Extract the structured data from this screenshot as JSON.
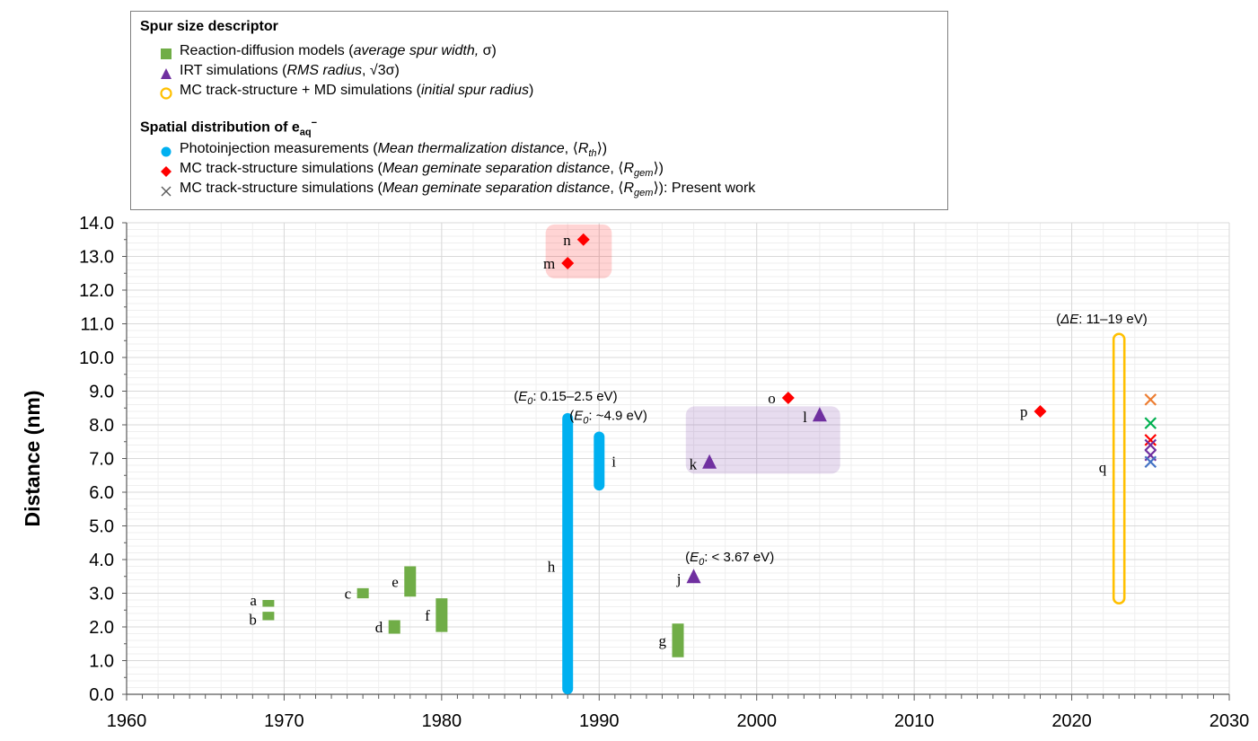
{
  "legend": {
    "group1_title": "Spur size descriptor",
    "group1": [
      {
        "marker": "square",
        "color": "#70ad47",
        "plain": "Reaction-diffusion models (",
        "italic": "average spur width,",
        "tail": " σ)"
      },
      {
        "marker": "triangle",
        "color": "#7030a0",
        "plain": "IRT simulations (",
        "italic": "RMS radius",
        "tail": ", √3σ)"
      },
      {
        "marker": "circle-open",
        "color": "#ffc000",
        "plain": "MC track-structure + MD simulations (",
        "italic": "initial spur radius",
        "tail": ")"
      }
    ],
    "group2_title": "Spatial distribution of e",
    "group2_sub": "aq",
    "group2_sup": "−",
    "group2": [
      {
        "marker": "circle",
        "color": "#00b0f0",
        "plain": "Photoinjection measurements (",
        "italic": "Mean thermalization distance",
        "tail": ", ⟨R",
        "tail_sub": "th",
        "tail_end": "⟩)"
      },
      {
        "marker": "diamond",
        "color": "#ff0000",
        "plain": "MC track-structure simulations (",
        "italic": "Mean geminate separation distance",
        "tail": ", ⟨R",
        "tail_sub": "gem",
        "tail_end": "⟩)"
      },
      {
        "marker": "cross",
        "color": "#595959",
        "plain": "MC track-structure simulations (",
        "italic": "Mean geminate separation distance",
        "tail": ", ⟨R",
        "tail_sub": "gem",
        "tail_end": "⟩): Present work"
      }
    ]
  },
  "chart_data": {
    "type": "scatter",
    "ylabel": "Distance (nm)",
    "xlabel": "",
    "xlim": [
      1960,
      2030
    ],
    "ylim": [
      0,
      14
    ],
    "x_ticks": [
      "1960",
      "1970",
      "1980",
      "1990",
      "2000",
      "2010",
      "2020",
      "2030"
    ],
    "y_ticks": [
      "0.0",
      "1.0",
      "2.0",
      "3.0",
      "4.0",
      "5.0",
      "6.0",
      "7.0",
      "8.0",
      "9.0",
      "10.0",
      "11.0",
      "12.0",
      "13.0",
      "14.0"
    ],
    "grid": true,
    "series": [
      {
        "name": "Reaction-diffusion models",
        "marker": "square",
        "color": "#70ad47",
        "points": [
          {
            "label": "a",
            "x": 1969,
            "y_low": 2.6,
            "y_high": 2.8
          },
          {
            "label": "b",
            "x": 1969,
            "y_low": 2.2,
            "y_high": 2.45
          },
          {
            "label": "c",
            "x": 1975,
            "y_low": 2.85,
            "y_high": 3.15
          },
          {
            "label": "d",
            "x": 1977,
            "y_low": 1.8,
            "y_high": 2.2
          },
          {
            "label": "e",
            "x": 1978,
            "y_low": 2.9,
            "y_high": 3.8
          },
          {
            "label": "f",
            "x": 1980,
            "y_low": 1.85,
            "y_high": 2.85
          },
          {
            "label": "g",
            "x": 1995,
            "y_low": 1.1,
            "y_high": 2.1
          }
        ]
      },
      {
        "name": "IRT simulations",
        "marker": "triangle",
        "color": "#7030a0",
        "points": [
          {
            "label": "j",
            "x": 1996,
            "y": 3.5
          },
          {
            "label": "k",
            "x": 1997,
            "y": 6.9
          },
          {
            "label": "l",
            "x": 2004,
            "y": 8.3
          }
        ]
      },
      {
        "name": "MC track-structure + MD simulations",
        "marker": "circle-open",
        "color": "#ffc000",
        "points": [
          {
            "label": "q",
            "x": 2023,
            "y_low": 2.7,
            "y_high": 10.7
          }
        ]
      },
      {
        "name": "Photoinjection measurements",
        "marker": "circle",
        "color": "#00b0f0",
        "points": [
          {
            "label": "h",
            "x": 1988,
            "y_low": 0.0,
            "y_high": 8.35
          },
          {
            "label": "i",
            "x": 1990,
            "y_low": 6.05,
            "y_high": 7.8
          }
        ]
      },
      {
        "name": "MC track-structure simulations",
        "marker": "diamond",
        "color": "#ff0000",
        "points": [
          {
            "label": "m",
            "x": 1988,
            "y": 12.8
          },
          {
            "label": "n",
            "x": 1989,
            "y": 13.5
          },
          {
            "label": "o",
            "x": 2002,
            "y": 8.8
          },
          {
            "label": "p",
            "x": 2018,
            "y": 8.4
          }
        ]
      },
      {
        "name": "MC track-structure simulations: Present work",
        "marker": "cross",
        "points": [
          {
            "x": 2025,
            "y": 8.75,
            "color": "#ed7d31"
          },
          {
            "x": 2025,
            "y": 8.05,
            "color": "#00b050"
          },
          {
            "x": 2025,
            "y": 7.55,
            "color": "#ff0000"
          },
          {
            "x": 2025,
            "y": 7.4,
            "color": "#7030a0"
          },
          {
            "x": 2025,
            "y": 7.1,
            "color": "#7030a0"
          },
          {
            "x": 2025,
            "y": 6.9,
            "color": "#4472c4"
          }
        ]
      }
    ],
    "annotations": [
      {
        "text_italic": "E",
        "text_sub": "0",
        "text_rest": ": 0.15–2.5 eV",
        "x": 1988,
        "y": 8.35,
        "anchor": "above"
      },
      {
        "text_italic": "E",
        "text_sub": "0",
        "text_rest": ": ~4.9 eV",
        "x": 1990,
        "y": 7.8,
        "anchor": "above"
      },
      {
        "text_italic": "E",
        "text_sub": "0",
        "text_rest": ": < 3.67 eV",
        "x": 1997,
        "y": 3.5,
        "anchor": "above"
      },
      {
        "text_italic": "ΔE",
        "text_sub": "",
        "text_rest": ": 11–19 eV",
        "x": 2023,
        "y": 10.7,
        "anchor": "above"
      }
    ],
    "highlight_boxes": [
      {
        "color": "#ff0000",
        "x0": 1986.6,
        "x1": 1990.8,
        "y0": 12.35,
        "y1": 13.95
      },
      {
        "color": "#7030a0",
        "x0": 1995.5,
        "x1": 2005.3,
        "y0": 6.55,
        "y1": 8.55
      }
    ]
  }
}
